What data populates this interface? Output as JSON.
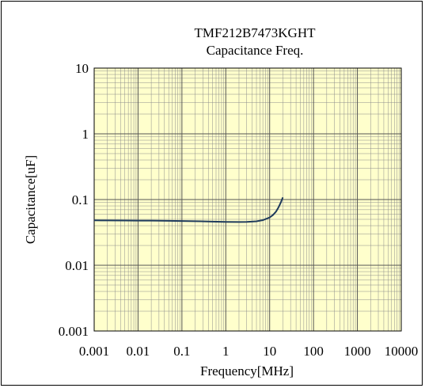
{
  "chart_data": {
    "type": "line",
    "title": "TMF212B7473KGHT",
    "subtitle": "Capacitance Freq.",
    "xlabel": "Frequency[MHz]",
    "ylabel": "Capacitance[uF]",
    "x_scale": "log",
    "y_scale": "log",
    "xlim": [
      0.001,
      10000
    ],
    "ylim": [
      0.001,
      10
    ],
    "x_ticks": [
      "0.001",
      "0.01",
      "0.1",
      "1",
      "10",
      "100",
      "1000",
      "10000"
    ],
    "y_ticks": [
      "0.001",
      "0.01",
      "0.1",
      "1",
      "10"
    ],
    "grid": true,
    "plot_background": "#ffffcc",
    "line_color": "#1f3b5c",
    "grid_color": "#8c8c8c",
    "series": [
      {
        "x": [
          0.001,
          0.002,
          0.005,
          0.01,
          0.02,
          0.05,
          0.1,
          0.2,
          0.5,
          1,
          2,
          3,
          5,
          7,
          10,
          12,
          14,
          16,
          18,
          20
        ],
        "values": [
          0.0482,
          0.0481,
          0.048,
          0.0478,
          0.0477,
          0.0474,
          0.0471,
          0.0468,
          0.0462,
          0.0457,
          0.0455,
          0.0456,
          0.0466,
          0.0486,
          0.0533,
          0.0585,
          0.0657,
          0.0765,
          0.0905,
          0.108
        ]
      }
    ]
  }
}
